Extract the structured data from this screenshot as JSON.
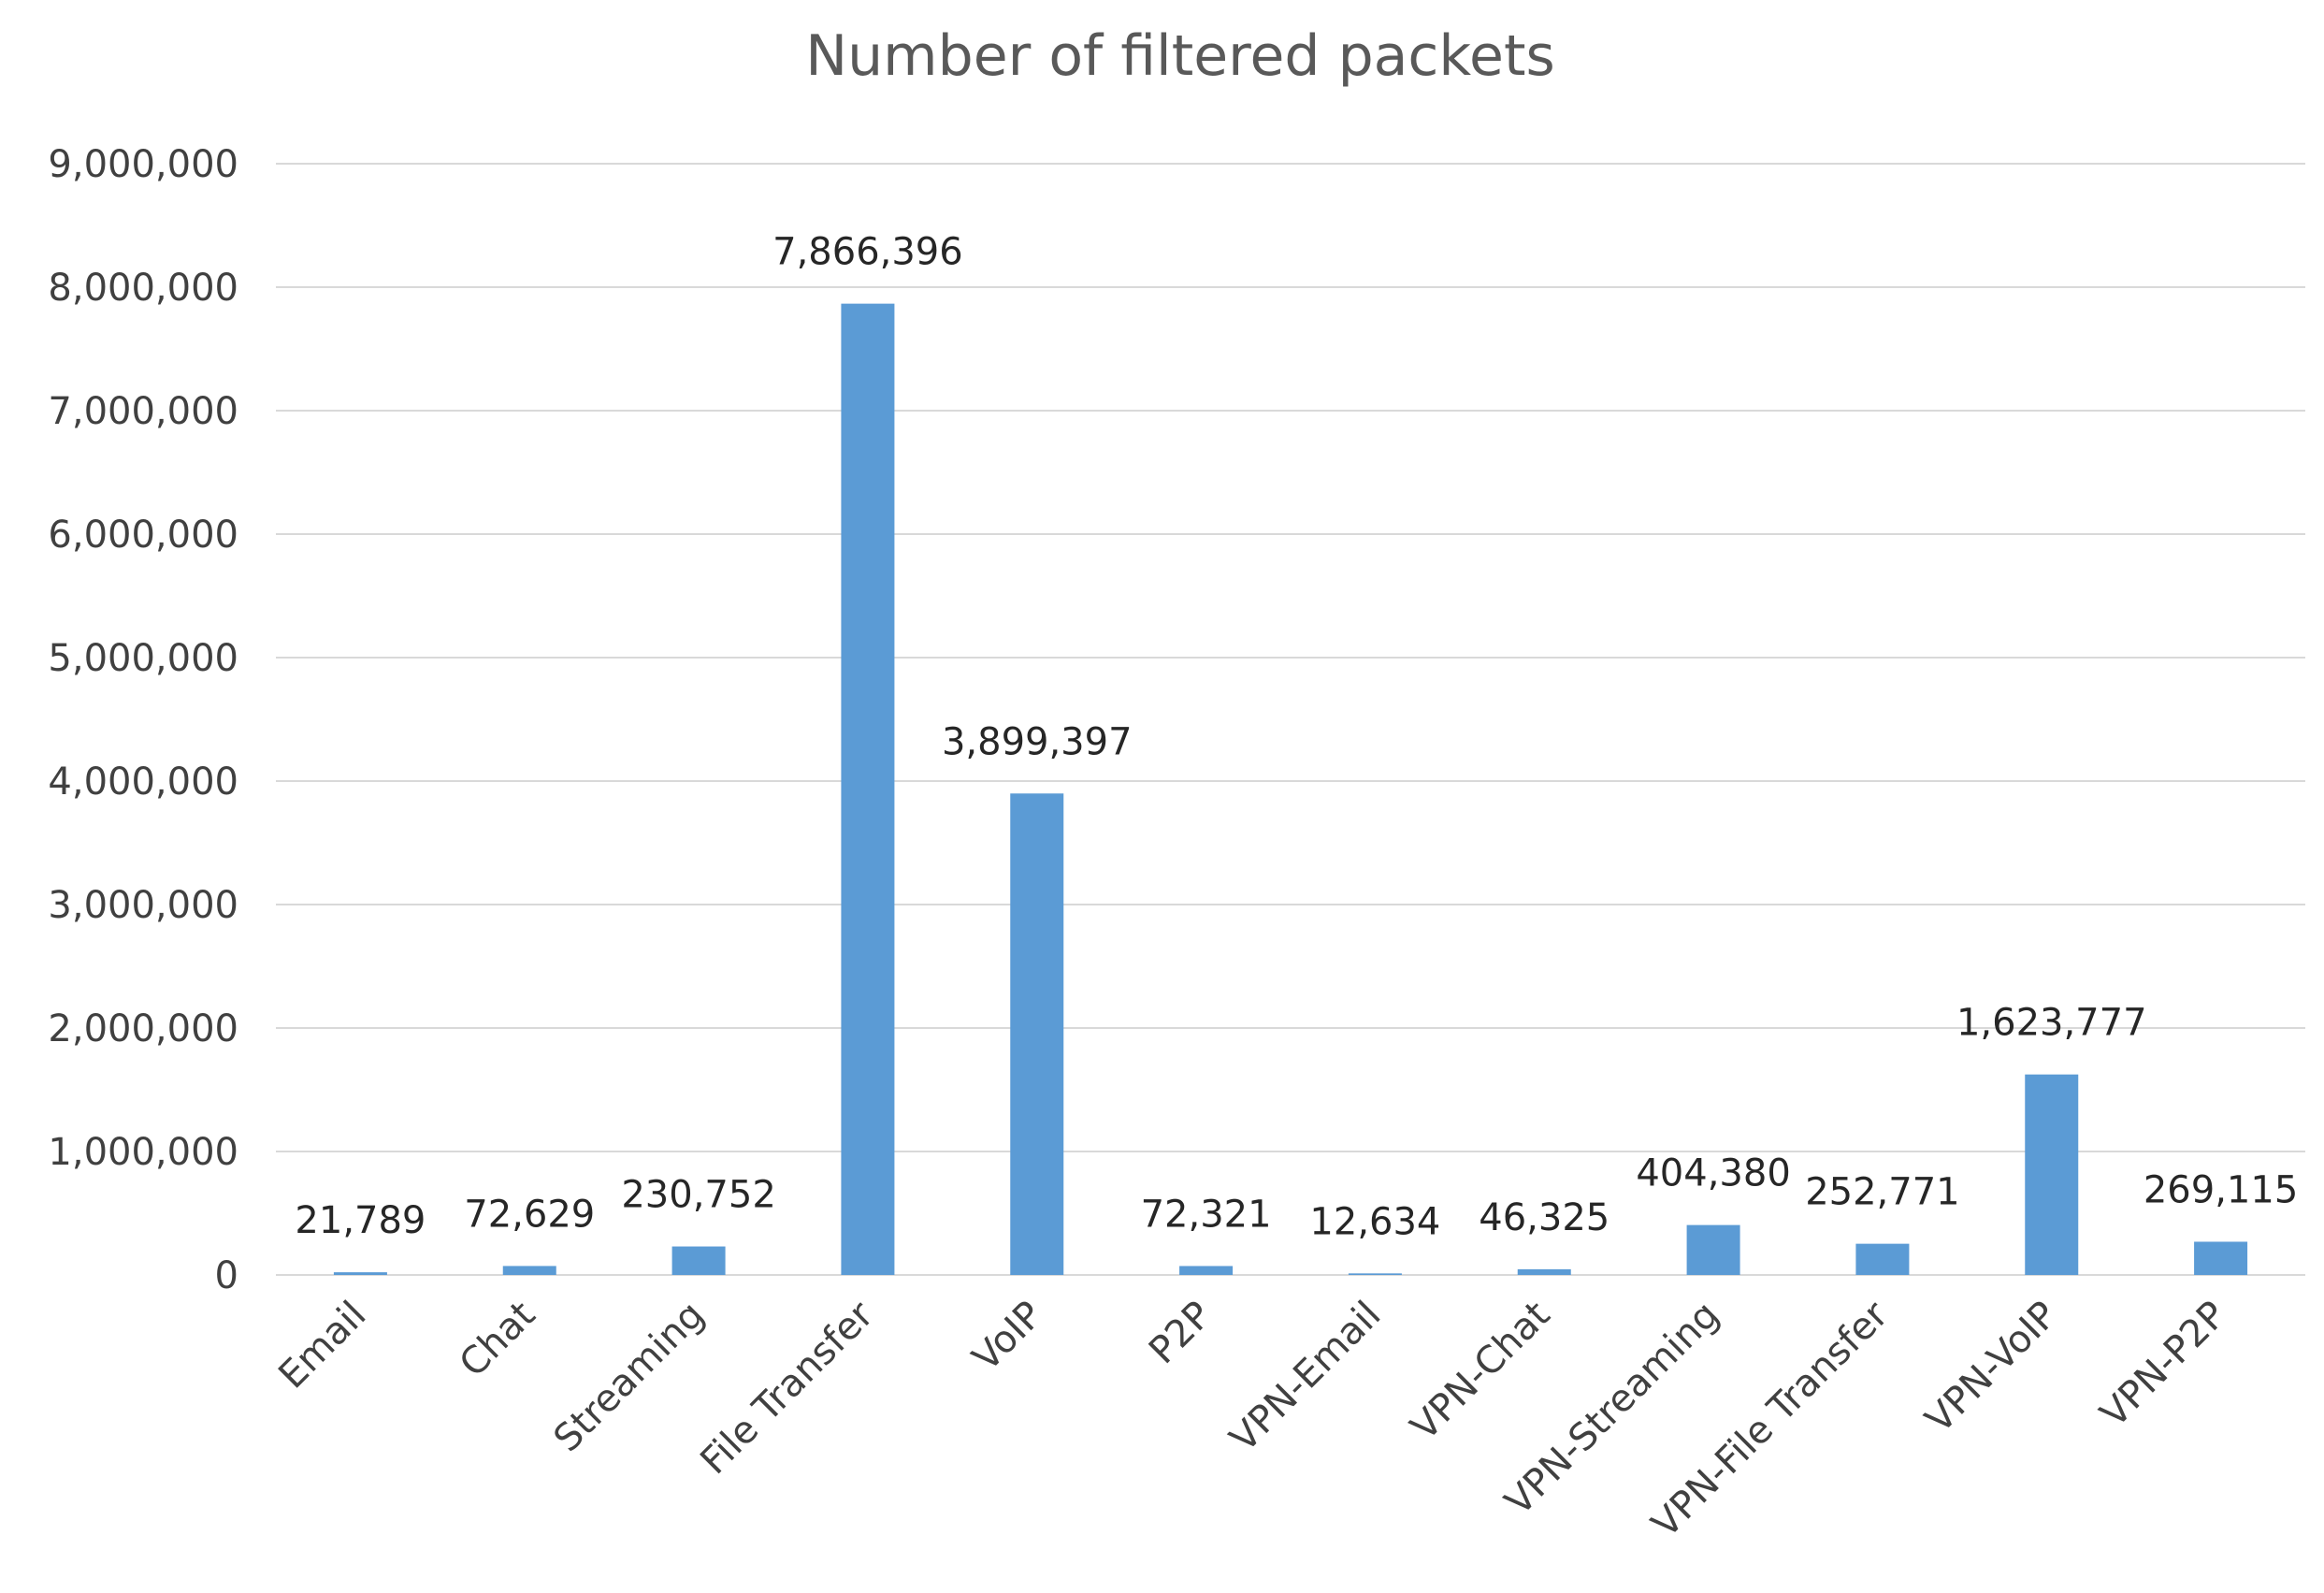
{
  "chart_data": {
    "type": "bar",
    "title": "Number of filtered packets",
    "xlabel": "",
    "ylabel": "",
    "categories": [
      "Email",
      "Chat",
      "Streaming",
      "File Transfer",
      "VoIP",
      "P2P",
      "VPN-Email",
      "VPN-Chat",
      "VPN-Streaming",
      "VPN-File Transfer",
      "VPN-VoIP",
      "VPN-P2P"
    ],
    "values": [
      21789,
      72629,
      230752,
      7866396,
      3899397,
      72321,
      12634,
      46325,
      404380,
      252771,
      1623777,
      269115
    ],
    "data_labels": [
      "21,789",
      "72,629",
      "230,752",
      "7,866,396",
      "3,899,397",
      "72,321",
      "12,634",
      "46,325",
      "404,380",
      "252,771",
      "1,623,777",
      "269,115"
    ],
    "ylim": [
      0,
      9000000
    ],
    "y_ticks": [
      0,
      1000000,
      2000000,
      3000000,
      4000000,
      5000000,
      6000000,
      7000000,
      8000000,
      9000000
    ],
    "y_tick_labels": [
      "0",
      "1,000,000",
      "2,000,000",
      "3,000,000",
      "4,000,000",
      "5,000,000",
      "6,000,000",
      "7,000,000",
      "8,000,000",
      "9,000,000"
    ],
    "grid": true,
    "legend": "none",
    "bar_color": "#5b9bd5"
  }
}
